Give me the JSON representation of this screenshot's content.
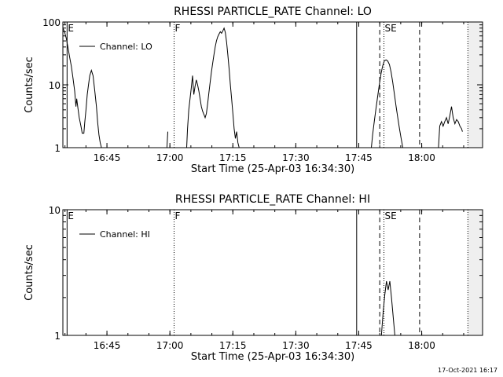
{
  "footer_timestamp": "17-Oct-2021 16:17",
  "chart_data": [
    {
      "type": "line",
      "title": "RHESSI PARTICLE_RATE Channel: LO",
      "xlabel": "Start Time (25-Apr-03 16:34:30)",
      "ylabel": "Counts/sec",
      "x_unit": "minutes after 16:34:30",
      "xlim": [
        0,
        100
      ],
      "y_scale": "log",
      "ylim": [
        1,
        100
      ],
      "x_ticks": [
        {
          "x": 10.5,
          "label": "16:45"
        },
        {
          "x": 25.5,
          "label": "17:00"
        },
        {
          "x": 40.5,
          "label": "17:15"
        },
        {
          "x": 55.5,
          "label": "17:30"
        },
        {
          "x": 70.5,
          "label": "17:45"
        },
        {
          "x": 85.5,
          "label": "18:00"
        }
      ],
      "y_ticks": [
        {
          "y": 1,
          "label": "1"
        },
        {
          "y": 10,
          "label": "10"
        },
        {
          "y": 100,
          "label": "100"
        }
      ],
      "legend": {
        "position": "top-left",
        "entries": [
          "Channel: LO"
        ]
      },
      "series": [
        {
          "name": "Channel: LO",
          "segments": [
            [
              [
                0,
                80
              ],
              [
                0.4,
                70
              ],
              [
                0.8,
                55
              ],
              [
                1.2,
                40
              ],
              [
                1.6,
                28
              ],
              [
                2,
                20
              ],
              [
                2.4,
                13
              ],
              [
                2.8,
                8
              ],
              [
                3.1,
                4.5
              ],
              [
                3.3,
                6
              ],
              [
                3.6,
                4.2
              ],
              [
                3.9,
                3
              ],
              [
                4.3,
                2.2
              ],
              [
                4.6,
                1.7
              ],
              [
                5,
                1.7
              ],
              [
                5.2,
                2.5
              ],
              [
                5.5,
                4
              ],
              [
                5.8,
                7
              ],
              [
                6.1,
                10
              ],
              [
                6.4,
                14
              ],
              [
                6.8,
                17
              ],
              [
                7.2,
                14
              ],
              [
                7.6,
                8
              ],
              [
                8,
                4.5
              ],
              [
                8.3,
                2.5
              ],
              [
                8.6,
                1.6
              ],
              [
                8.9,
                1.2
              ],
              [
                9.2,
                1
              ]
            ],
            [
              [
                24.8,
                1
              ],
              [
                25,
                1.8
              ]
            ],
            [
              [
                29.5,
                1
              ],
              [
                29.7,
                2
              ],
              [
                30,
                4
              ],
              [
                30.3,
                6
              ],
              [
                30.6,
                9
              ],
              [
                30.9,
                14
              ],
              [
                31.2,
                7
              ],
              [
                31.5,
                9.5
              ],
              [
                31.8,
                12
              ],
              [
                32.1,
                10
              ],
              [
                32.4,
                8
              ],
              [
                32.7,
                6
              ],
              [
                33,
                4.5
              ],
              [
                33.3,
                3.8
              ],
              [
                33.6,
                3.4
              ],
              [
                33.9,
                3
              ],
              [
                34.2,
                3.5
              ],
              [
                34.5,
                5
              ],
              [
                34.8,
                7.5
              ],
              [
                35.1,
                11
              ],
              [
                35.4,
                16
              ],
              [
                35.7,
                22
              ],
              [
                36,
                30
              ],
              [
                36.3,
                40
              ],
              [
                36.6,
                50
              ],
              [
                36.9,
                58
              ],
              [
                37.2,
                64
              ],
              [
                37.5,
                70
              ],
              [
                37.8,
                66
              ],
              [
                38.1,
                72
              ],
              [
                38.4,
                80
              ],
              [
                38.7,
                68
              ],
              [
                39,
                48
              ],
              [
                39.3,
                30
              ],
              [
                39.6,
                18
              ],
              [
                39.9,
                10
              ],
              [
                40.2,
                6
              ],
              [
                40.5,
                3.5
              ],
              [
                40.8,
                2
              ],
              [
                41.1,
                1.4
              ],
              [
                41.4,
                1.8
              ],
              [
                41.7,
                1.2
              ],
              [
                42,
                1
              ]
            ],
            [
              [
                73.5,
                1
              ],
              [
                73.8,
                1.6
              ],
              [
                74.2,
                2.6
              ],
              [
                74.6,
                4.2
              ],
              [
                75,
                6.5
              ],
              [
                75.4,
                10
              ],
              [
                75.8,
                15
              ],
              [
                76.2,
                20
              ],
              [
                76.6,
                24
              ],
              [
                77,
                25
              ],
              [
                77.4,
                24
              ],
              [
                77.8,
                21
              ],
              [
                78.2,
                16
              ],
              [
                78.6,
                11
              ],
              [
                79,
                7
              ],
              [
                79.4,
                4.5
              ],
              [
                79.8,
                3
              ],
              [
                80.2,
                2
              ],
              [
                80.6,
                1.4
              ],
              [
                81,
                1
              ]
            ],
            [
              [
                89.5,
                1
              ],
              [
                89.8,
                2.2
              ],
              [
                90.2,
                2.6
              ],
              [
                90.6,
                2.2
              ],
              [
                91,
                2.6
              ],
              [
                91.4,
                3
              ],
              [
                91.8,
                2.4
              ],
              [
                92.2,
                3.2
              ],
              [
                92.6,
                4.5
              ],
              [
                93,
                3
              ],
              [
                93.4,
                2.4
              ],
              [
                93.8,
                2.8
              ],
              [
                94.2,
                2.6
              ],
              [
                94.6,
                2.2
              ],
              [
                95,
                2
              ],
              [
                95.2,
                1.8
              ]
            ]
          ]
        }
      ],
      "markers": [
        {
          "x": 1.0,
          "style": "solid",
          "label": "E"
        },
        {
          "x": 26.5,
          "style": "dotted",
          "label": "F"
        },
        {
          "x": 70.0,
          "style": "solid",
          "label": ""
        },
        {
          "x": 75.5,
          "style": "dashed",
          "label": ""
        },
        {
          "x": 76.5,
          "style": "dotted",
          "label": "SE"
        },
        {
          "x": 85.0,
          "style": "dashed",
          "label": ""
        },
        {
          "x": 96.5,
          "style": "dotted",
          "label": ""
        }
      ]
    },
    {
      "type": "line",
      "title": "RHESSI PARTICLE_RATE Channel: HI",
      "xlabel": "Start Time (25-Apr-03 16:34:30)",
      "ylabel": "Counts/sec",
      "x_unit": "minutes after 16:34:30",
      "xlim": [
        0,
        100
      ],
      "y_scale": "log",
      "ylim": [
        1,
        10
      ],
      "x_ticks": [
        {
          "x": 10.5,
          "label": "16:45"
        },
        {
          "x": 25.5,
          "label": "17:00"
        },
        {
          "x": 40.5,
          "label": "17:15"
        },
        {
          "x": 55.5,
          "label": "17:30"
        },
        {
          "x": 70.5,
          "label": "17:45"
        },
        {
          "x": 85.5,
          "label": "18:00"
        }
      ],
      "y_ticks": [
        {
          "y": 1,
          "label": "1"
        },
        {
          "y": 10,
          "label": "10"
        }
      ],
      "legend": {
        "position": "top-left",
        "entries": [
          "Channel: HI"
        ]
      },
      "series": [
        {
          "name": "Channel: HI",
          "segments": [
            [
              [
                75.9,
                1
              ],
              [
                76.3,
                1.5
              ],
              [
                76.7,
                2.1
              ],
              [
                77.1,
                2.7
              ],
              [
                77.5,
                2.3
              ],
              [
                77.9,
                2.7
              ],
              [
                78.3,
                2
              ],
              [
                78.7,
                1.4
              ],
              [
                79.1,
                1
              ]
            ]
          ]
        }
      ],
      "markers": [
        {
          "x": 1.0,
          "style": "solid",
          "label": "E"
        },
        {
          "x": 26.5,
          "style": "dotted",
          "label": "F"
        },
        {
          "x": 70.0,
          "style": "solid",
          "label": ""
        },
        {
          "x": 75.5,
          "style": "dashed",
          "label": ""
        },
        {
          "x": 76.5,
          "style": "dotted",
          "label": "SE"
        },
        {
          "x": 85.0,
          "style": "dashed",
          "label": ""
        },
        {
          "x": 96.5,
          "style": "dotted",
          "label": ""
        }
      ]
    }
  ]
}
